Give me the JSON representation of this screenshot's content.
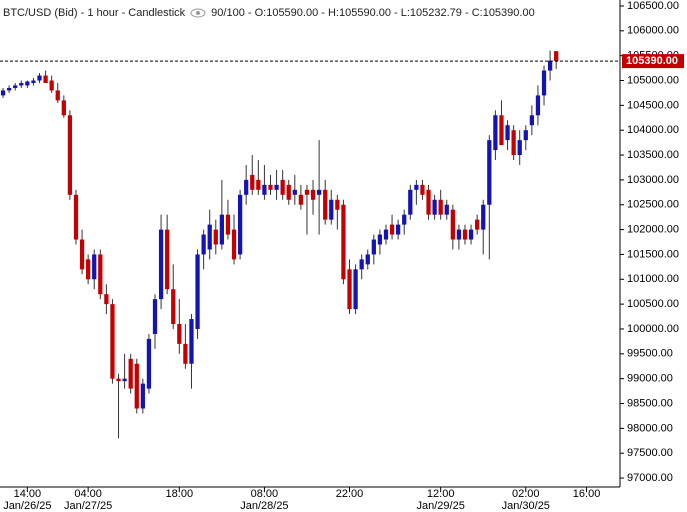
{
  "chart_data": {
    "type": "candlestick",
    "title": "BTC/USD (Bid) - 1 hour - Candlestick",
    "subtitle": "90/100 - O:105590.00 - H:105590.00 - L:105232.79 - C:105390.00",
    "up_color": "#1414b4",
    "down_color": "#c40000",
    "open": [
      104700,
      104800,
      104850,
      104900,
      104900,
      104950,
      105000,
      105100,
      105000,
      104800,
      104600,
      104300,
      102700,
      101800,
      101400,
      101000,
      101500,
      100700,
      100500,
      99000,
      98950,
      99400,
      99300,
      98400,
      98800,
      99900,
      100600,
      102000,
      100800,
      100100,
      99700,
      99300,
      100000,
      101500,
      101600,
      102000,
      101700,
      102300,
      102000,
      101500,
      102700,
      103100,
      103000,
      102700,
      102900,
      102800,
      103000,
      102900,
      102700,
      102700,
      102800,
      102800,
      102700,
      102800,
      102200,
      102600,
      102500,
      101200,
      100400,
      101200,
      101300,
      101500,
      101700,
      101800,
      102100,
      101900,
      102100,
      102300,
      102800,
      102900,
      102800,
      102300,
      102600,
      102300,
      102400,
      101800,
      102000,
      101800,
      102200,
      102000,
      102500,
      103600,
      104300,
      103800,
      104000,
      103500,
      103800,
      104100,
      104300,
      104700,
      105200,
      105590
    ],
    "high": [
      104850,
      104900,
      104950,
      105000,
      105000,
      105050,
      105150,
      105200,
      105100,
      104950,
      104700,
      104400,
      102800,
      102000,
      101500,
      101600,
      101600,
      100900,
      100600,
      99100,
      99500,
      99500,
      99400,
      99000,
      99900,
      100700,
      102300,
      102300,
      101300,
      100600,
      100100,
      100300,
      101600,
      102000,
      102400,
      102200,
      103000,
      102600,
      102300,
      102800,
      103300,
      103500,
      103400,
      103300,
      103100,
      103200,
      103200,
      103000,
      103100,
      102900,
      102900,
      103000,
      103800,
      103000,
      102800,
      102700,
      102600,
      101400,
      101300,
      101500,
      101600,
      101900,
      102000,
      102100,
      102300,
      102200,
      102400,
      102900,
      103000,
      103000,
      102900,
      102700,
      102800,
      102600,
      102500,
      102100,
      102100,
      102100,
      102300,
      102600,
      103900,
      104400,
      104600,
      104200,
      104100,
      104000,
      104100,
      104500,
      104900,
      105300,
      105600,
      105590
    ],
    "low": [
      104650,
      104750,
      104800,
      104850,
      104850,
      104900,
      104950,
      104950,
      104750,
      104550,
      104250,
      102600,
      101700,
      101100,
      100900,
      100800,
      100600,
      100300,
      98900,
      97800,
      98800,
      98700,
      98300,
      98300,
      98700,
      99600,
      100400,
      100700,
      100000,
      99500,
      99200,
      98800,
      99800,
      101200,
      101400,
      101500,
      101600,
      101800,
      101300,
      101400,
      102500,
      102700,
      102700,
      102600,
      102700,
      102600,
      102600,
      102500,
      102500,
      102400,
      101900,
      102300,
      101900,
      102100,
      102100,
      102000,
      100900,
      100300,
      100300,
      101000,
      101200,
      101300,
      101500,
      101700,
      101800,
      101800,
      101900,
      102200,
      102500,
      102600,
      102200,
      102200,
      102200,
      102200,
      101600,
      101600,
      101700,
      101700,
      101900,
      101500,
      101400,
      103400,
      103700,
      103600,
      103400,
      103300,
      103600,
      103900,
      104100,
      104500,
      105000,
      105232.79
    ],
    "close": [
      104800,
      104850,
      104900,
      104950,
      104980,
      105000,
      105100,
      104950,
      104800,
      104600,
      104300,
      102700,
      101800,
      101200,
      101000,
      101500,
      100700,
      100500,
      99000,
      98950,
      99000,
      98800,
      98400,
      98900,
      99800,
      100600,
      102000,
      100800,
      100100,
      99700,
      99300,
      100200,
      101500,
      101900,
      102100,
      101700,
      102300,
      101900,
      101400,
      102700,
      103000,
      102800,
      102800,
      102900,
      102800,
      102900,
      102700,
      102600,
      102800,
      102500,
      102700,
      102600,
      102800,
      102200,
      102600,
      102400,
      101000,
      100400,
      101200,
      101400,
      101500,
      101800,
      101900,
      102000,
      101900,
      102100,
      102300,
      102800,
      102900,
      102700,
      102300,
      102600,
      102300,
      102500,
      101800,
      102000,
      101800,
      102000,
      102000,
      102500,
      103800,
      104300,
      103700,
      104100,
      103500,
      103800,
      104000,
      104300,
      104700,
      105200,
      105400,
      105390
    ],
    "last_price": {
      "value": 105390,
      "label": "105390.00"
    },
    "xlim": [
      -0.5,
      101.5
    ],
    "xticks": [
      {
        "value": 4,
        "label": "14:00",
        "date": "Jan/26/25"
      },
      {
        "value": 14,
        "label": "04:00",
        "date": "Jan/27/25"
      },
      {
        "value": 29,
        "label": "18:00"
      },
      {
        "value": 43,
        "label": "08:00",
        "date": "Jan/28/25"
      },
      {
        "value": 57,
        "label": "22:00"
      },
      {
        "value": 72,
        "label": "12:00",
        "date": "Jan/29/25"
      },
      {
        "value": 86,
        "label": "02:00",
        "date": "Jan/30/25"
      },
      {
        "value": 96,
        "label": "16:00"
      }
    ],
    "ylim": [
      96820,
      106620
    ],
    "yticks": [
      {
        "value": 97000,
        "label": "97000.00"
      },
      {
        "value": 97500,
        "label": "97500.00"
      },
      {
        "value": 98000,
        "label": "98000.00"
      },
      {
        "value": 98500,
        "label": "98500.00"
      },
      {
        "value": 99000,
        "label": "99000.00"
      },
      {
        "value": 99500,
        "label": "99500.00"
      },
      {
        "value": 100000,
        "label": "100000.00"
      },
      {
        "value": 100500,
        "label": "100500.00"
      },
      {
        "value": 101000,
        "label": "101000.00"
      },
      {
        "value": 101500,
        "label": "101500.00"
      },
      {
        "value": 102000,
        "label": "102000.00"
      },
      {
        "value": 102500,
        "label": "102500.00"
      },
      {
        "value": 103000,
        "label": "103000.00"
      },
      {
        "value": 103500,
        "label": "103500.00"
      },
      {
        "value": 104000,
        "label": "104000.00"
      },
      {
        "value": 104500,
        "label": "104500.00"
      },
      {
        "value": 105000,
        "label": "105000.00"
      },
      {
        "value": 105500,
        "label": "105500.00"
      },
      {
        "value": 106000,
        "label": "106000.00"
      },
      {
        "value": 106500,
        "label": "106500.00"
      }
    ]
  }
}
